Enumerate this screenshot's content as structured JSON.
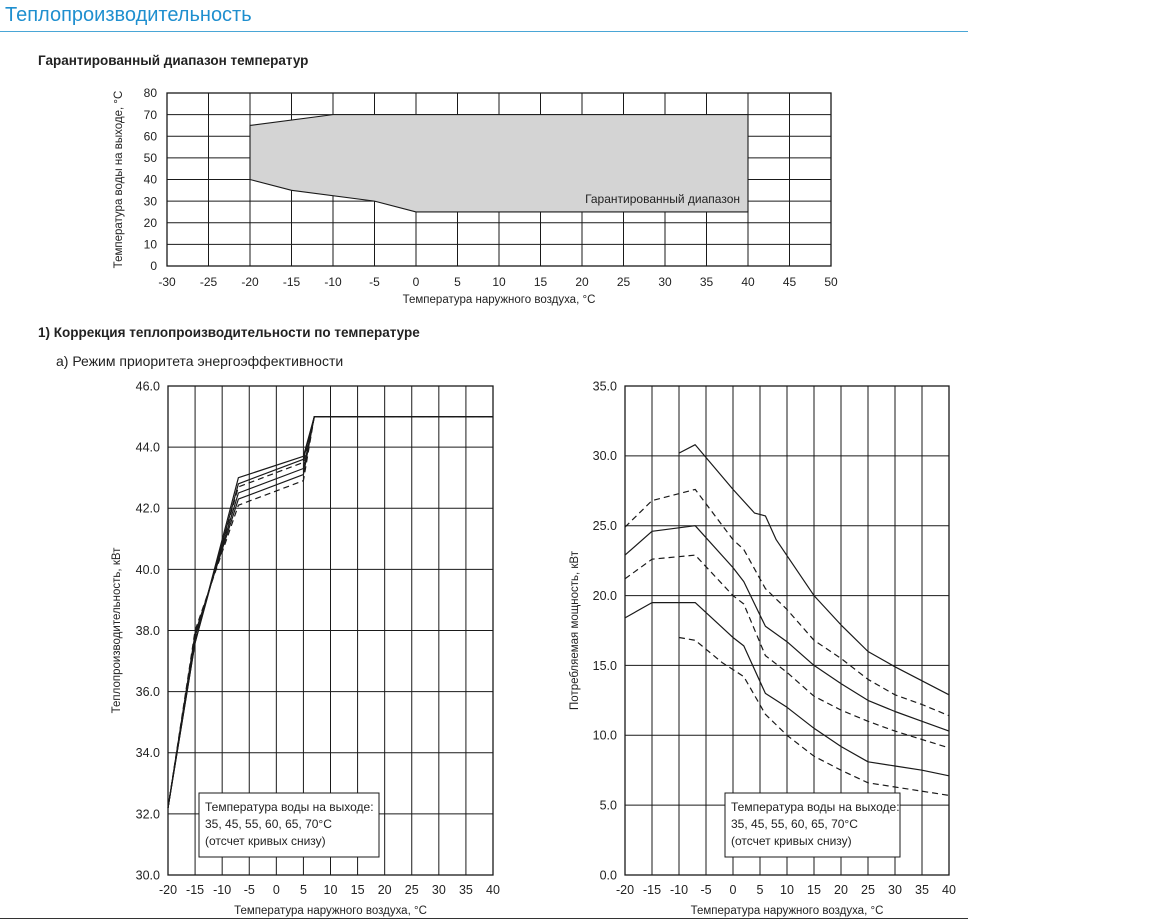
{
  "page": {
    "title": "Теплопроизводительность",
    "section_range": "Гарантированный диапазон температур",
    "section_correction": "1) Коррекция теплопроизводительности по температуре",
    "subsection_mode": "а) Режим приоритета энергоэффективности"
  },
  "colors": {
    "title": "#1f8fcf",
    "range_fill": "#d4d4d4",
    "line": "#1a1a1a"
  },
  "chart_data": [
    {
      "type": "area",
      "ylabel": "Температура воды на выходе, °C",
      "xlabel": "Температура наружного воздуха, °C",
      "xlim": [
        -30,
        50
      ],
      "ylim": [
        0,
        80
      ],
      "xticks": [
        -30,
        -25,
        -20,
        -15,
        -10,
        -5,
        0,
        5,
        10,
        15,
        20,
        25,
        30,
        35,
        40,
        45,
        50
      ],
      "yticks": [
        0,
        10,
        20,
        30,
        40,
        50,
        60,
        70,
        80
      ],
      "grid": true,
      "region_label": "Гарантированный диапазон",
      "region_upper": {
        "x": [
          -20,
          -10,
          40
        ],
        "y": [
          65,
          70,
          70
        ]
      },
      "region_lower": {
        "x": [
          -20,
          -15,
          -5,
          0,
          40
        ],
        "y": [
          40,
          35,
          30,
          25,
          25
        ]
      }
    },
    {
      "type": "line",
      "ylabel": "Теплопроизводительность, кВт",
      "xlabel": "Температура наружного воздуха, °C",
      "xlim": [
        -20,
        40
      ],
      "ylim": [
        30,
        46
      ],
      "xticks": [
        -20,
        -15,
        -10,
        -5,
        0,
        5,
        10,
        15,
        20,
        25,
        30,
        35,
        40
      ],
      "yticks": [
        30.0,
        32.0,
        34.0,
        36.0,
        38.0,
        40.0,
        42.0,
        44.0,
        46.0
      ],
      "grid": true,
      "legend_lines": [
        "Температура воды на выходе:",
        "35, 45, 55, 60, 65, 70°C",
        "(отсчет кривых снизу)"
      ],
      "series": [
        {
          "style": "solid",
          "x": [
            -20,
            -15,
            -7,
            5,
            7,
            40
          ],
          "y": [
            32.2,
            37.6,
            43.0,
            43.7,
            45.0,
            45.0
          ]
        },
        {
          "style": "solid",
          "x": [
            -20,
            -15,
            -7,
            5,
            7,
            40
          ],
          "y": [
            32.2,
            37.6,
            42.8,
            43.6,
            45.0,
            45.0
          ]
        },
        {
          "style": "dashed",
          "x": [
            -20,
            -15,
            -7,
            5,
            7,
            40
          ],
          "y": [
            32.2,
            37.7,
            42.7,
            43.5,
            45.0,
            45.0
          ]
        },
        {
          "style": "solid",
          "x": [
            -20,
            -15,
            -7,
            5,
            7,
            40
          ],
          "y": [
            32.2,
            37.8,
            42.5,
            43.3,
            45.0,
            45.0
          ]
        },
        {
          "style": "solid",
          "x": [
            -20,
            -15,
            -7,
            5,
            7,
            40
          ],
          "y": [
            32.2,
            37.9,
            42.3,
            43.1,
            45.0,
            45.0
          ]
        },
        {
          "style": "dashed",
          "x": [
            -20,
            -15,
            -7,
            5,
            7,
            40
          ],
          "y": [
            32.2,
            38.0,
            42.1,
            42.9,
            45.0,
            45.0
          ]
        }
      ]
    },
    {
      "type": "line",
      "ylabel": "Потребляемая мощность, кВт",
      "xlabel": "Температура наружного воздуха, °C",
      "xlim": [
        -20,
        40
      ],
      "ylim": [
        0,
        35
      ],
      "xticks": [
        -20,
        -15,
        -10,
        -5,
        0,
        5,
        10,
        15,
        20,
        25,
        30,
        35,
        40
      ],
      "yticks": [
        0.0,
        5.0,
        10.0,
        15.0,
        20.0,
        25.0,
        30.0,
        35.0
      ],
      "grid": true,
      "legend_lines": [
        "Температура воды на выходе:",
        "35, 45, 55, 60, 65, 70°C",
        "(отсчет кривых снизу)"
      ],
      "series": [
        {
          "style": "dashed",
          "x": [
            -10,
            -7,
            -2,
            2,
            6,
            10,
            15,
            20,
            25,
            30,
            35,
            40
          ],
          "y": [
            17.0,
            16.8,
            15.2,
            14.2,
            11.5,
            10.0,
            8.5,
            7.5,
            6.6,
            6.3,
            6.0,
            5.7
          ]
        },
        {
          "style": "solid",
          "x": [
            -20,
            -15,
            -7,
            0,
            2,
            6,
            10,
            15,
            20,
            25,
            30,
            35,
            40
          ],
          "y": [
            18.4,
            19.5,
            19.5,
            17.0,
            16.4,
            13.0,
            12.0,
            10.5,
            9.2,
            8.1,
            7.8,
            7.5,
            7.1
          ]
        },
        {
          "style": "dashed",
          "x": [
            -20,
            -15,
            -7,
            0,
            2,
            6,
            10,
            15,
            20,
            25,
            30,
            35,
            40
          ],
          "y": [
            21.2,
            22.6,
            22.9,
            20.0,
            19.4,
            15.7,
            14.5,
            12.8,
            11.8,
            11.0,
            10.3,
            9.7,
            9.1
          ]
        },
        {
          "style": "solid",
          "x": [
            -20,
            -15,
            -7,
            0,
            2,
            6,
            10,
            15,
            20,
            25,
            30,
            35,
            40
          ],
          "y": [
            22.9,
            24.6,
            25.0,
            22.0,
            21.0,
            17.8,
            16.7,
            15.0,
            13.7,
            12.5,
            11.7,
            11.0,
            10.3
          ]
        },
        {
          "style": "dashed",
          "x": [
            -20,
            -15,
            -7,
            0,
            2,
            6,
            10,
            15,
            20,
            25,
            30,
            35,
            40
          ],
          "y": [
            24.9,
            26.8,
            27.6,
            24.0,
            23.3,
            20.5,
            19.0,
            16.8,
            15.5,
            14.0,
            12.9,
            12.2,
            11.4
          ]
        },
        {
          "style": "solid",
          "x": [
            -10,
            -7,
            0,
            4,
            6,
            8,
            15,
            20,
            25,
            30,
            35,
            40
          ],
          "y": [
            30.2,
            30.8,
            27.6,
            25.9,
            25.7,
            24.0,
            20.0,
            17.9,
            16.0,
            14.9,
            13.9,
            12.9
          ]
        }
      ]
    }
  ]
}
